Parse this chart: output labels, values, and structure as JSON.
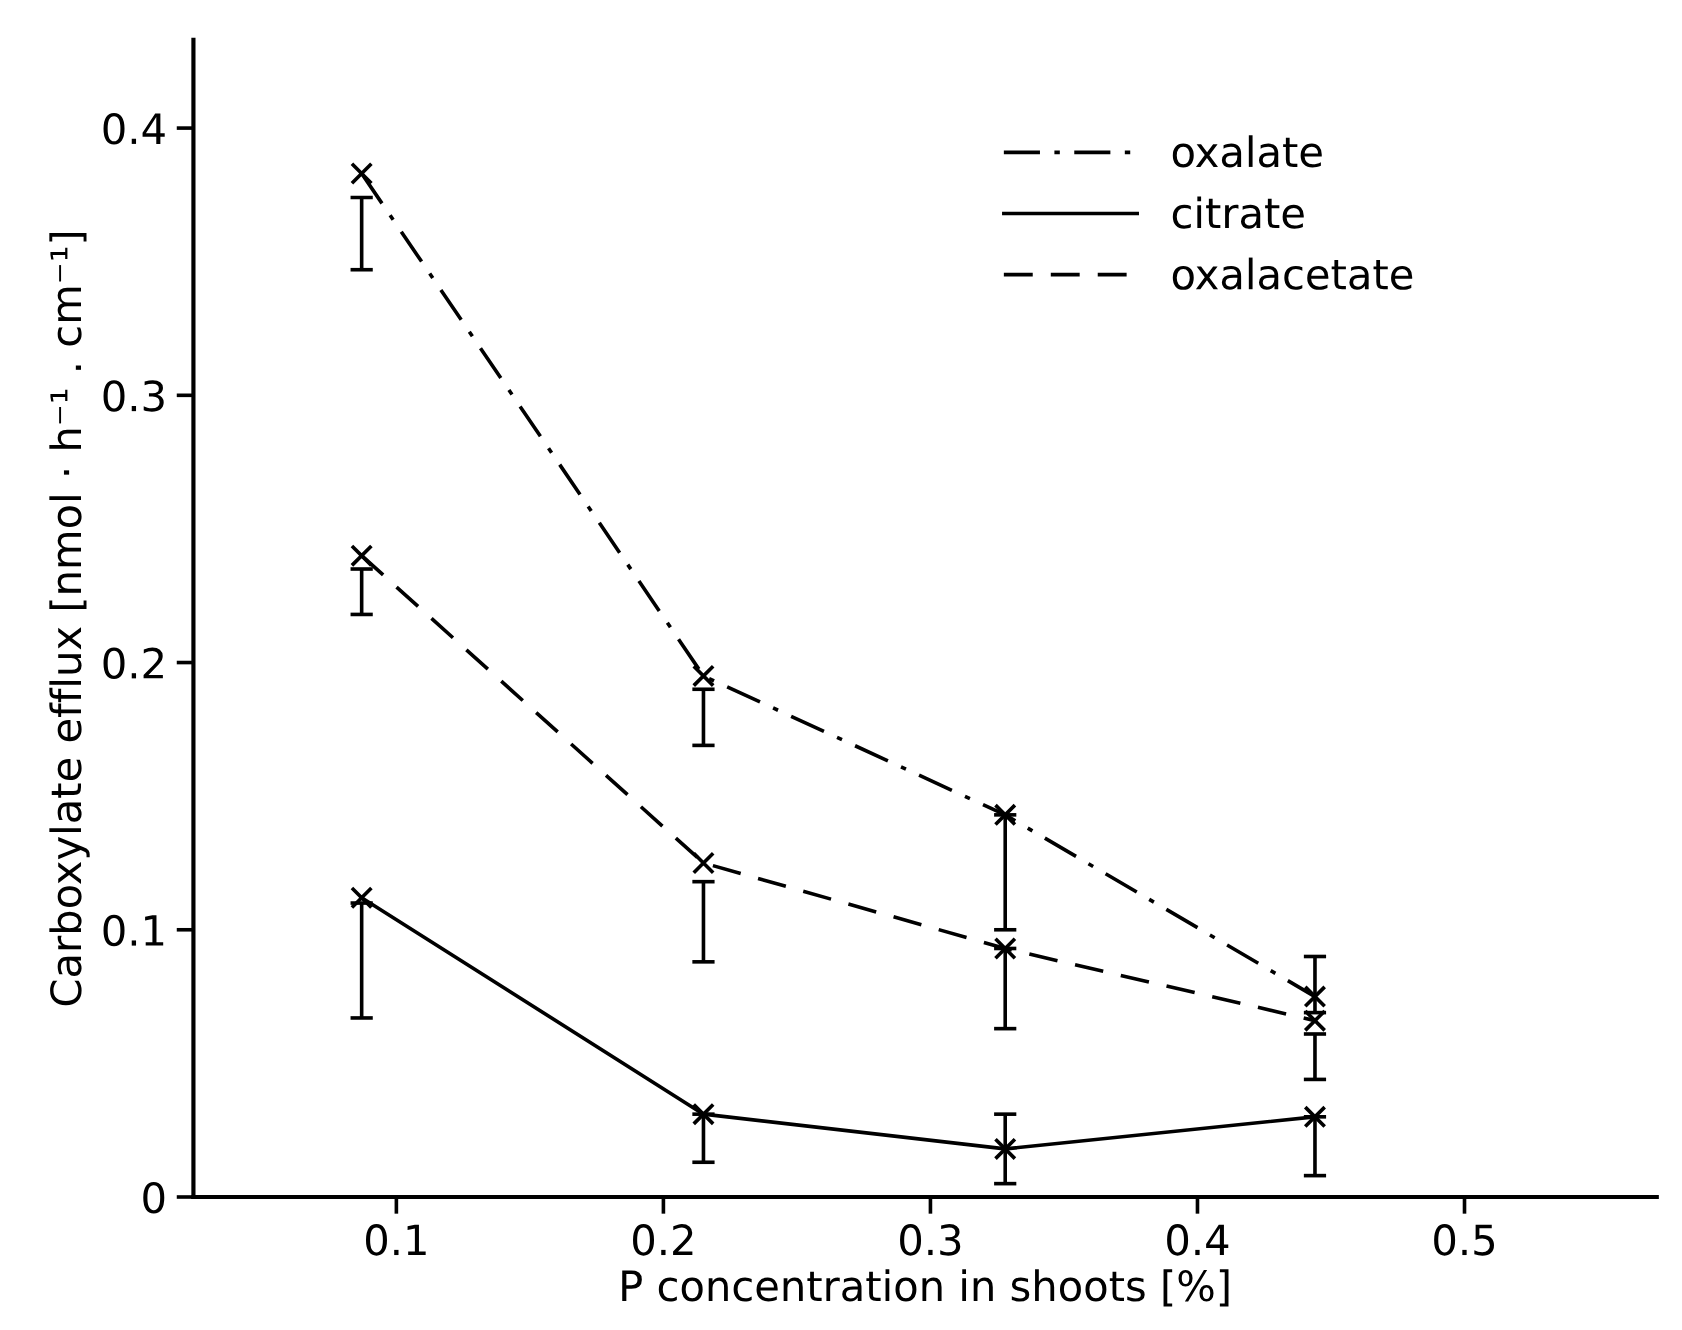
{
  "chart_data": {
    "type": "line",
    "xlabel": "P concentration in shoots [%]",
    "ylabel": "Carboxylate efflux [nmol · h⁻¹ . cm⁻¹]",
    "xlim": [
      0.024,
      0.572
    ],
    "ylim": [
      0,
      0.433
    ],
    "xticks": [
      0.1,
      0.2,
      0.3,
      0.4,
      0.5
    ],
    "yticks": [
      0,
      0.1,
      0.2,
      0.3,
      0.4
    ],
    "grid": false,
    "legend": "top right",
    "marker": "cross",
    "series": [
      {
        "name": "oxalate",
        "color": "#000000",
        "line_style": "dashdot",
        "x": [
          0.087,
          0.215,
          0.328,
          0.444
        ],
        "values": [
          0.383,
          0.195,
          0.143,
          0.075
        ],
        "errors": [
          [
            0.347,
            0.374
          ],
          [
            0.169,
            0.19
          ],
          [
            0.1,
            0.143
          ],
          [
            0.069,
            0.09
          ]
        ]
      },
      {
        "name": "citrate",
        "color": "#000000",
        "line_style": "solid",
        "x": [
          0.087,
          0.215,
          0.328,
          0.444
        ],
        "values": [
          0.112,
          0.031,
          0.018,
          0.03
        ],
        "errors": [
          [
            0.067,
            0.11
          ],
          [
            0.013,
            0.031
          ],
          [
            0.005,
            0.031
          ],
          [
            0.008,
            0.03
          ]
        ]
      },
      {
        "name": "oxalacetate",
        "color": "#000000",
        "line_style": "dashed",
        "x": [
          0.087,
          0.215,
          0.328,
          0.444
        ],
        "values": [
          0.24,
          0.125,
          0.093,
          0.066
        ],
        "errors": [
          [
            0.218,
            0.235
          ],
          [
            0.088,
            0.118
          ],
          [
            0.063,
            0.093
          ],
          [
            0.044,
            0.061
          ]
        ]
      }
    ]
  }
}
